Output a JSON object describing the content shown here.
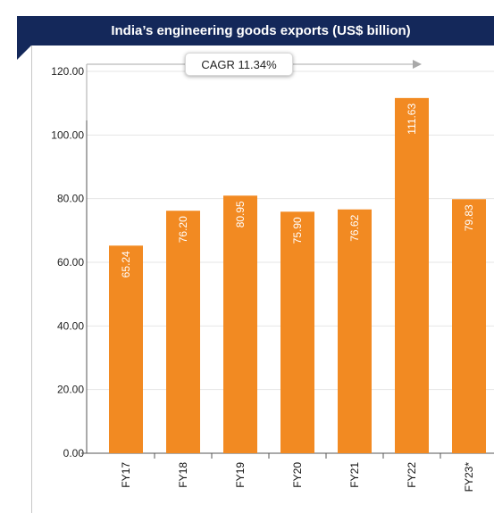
{
  "chart_data": {
    "type": "bar",
    "title": "India’s engineering goods exports (US$ billion)",
    "categories": [
      "FY17",
      "FY18",
      "FY19",
      "FY20",
      "FY21",
      "FY22",
      "FY23*"
    ],
    "values": [
      65.24,
      76.2,
      80.95,
      75.9,
      76.62,
      111.63,
      79.83
    ],
    "value_labels": [
      "65.24",
      "76.20",
      "80.95",
      "75.90",
      "76.62",
      "111.63",
      "79.83"
    ],
    "y_ticks": [
      "0.00",
      "20.00",
      "40.00",
      "60.00",
      "80.00",
      "100.00",
      "120.00"
    ],
    "ylim": [
      0,
      120
    ],
    "xlabel": "",
    "ylabel": "",
    "grid": true,
    "legend": "none",
    "annotation": "CAGR 11.34%",
    "colors": {
      "bar": "#f28a22",
      "title_bg": "#14285a",
      "gridline": "#e6e6e6",
      "axis": "#555555",
      "arrow": "#a9a9a9"
    }
  }
}
